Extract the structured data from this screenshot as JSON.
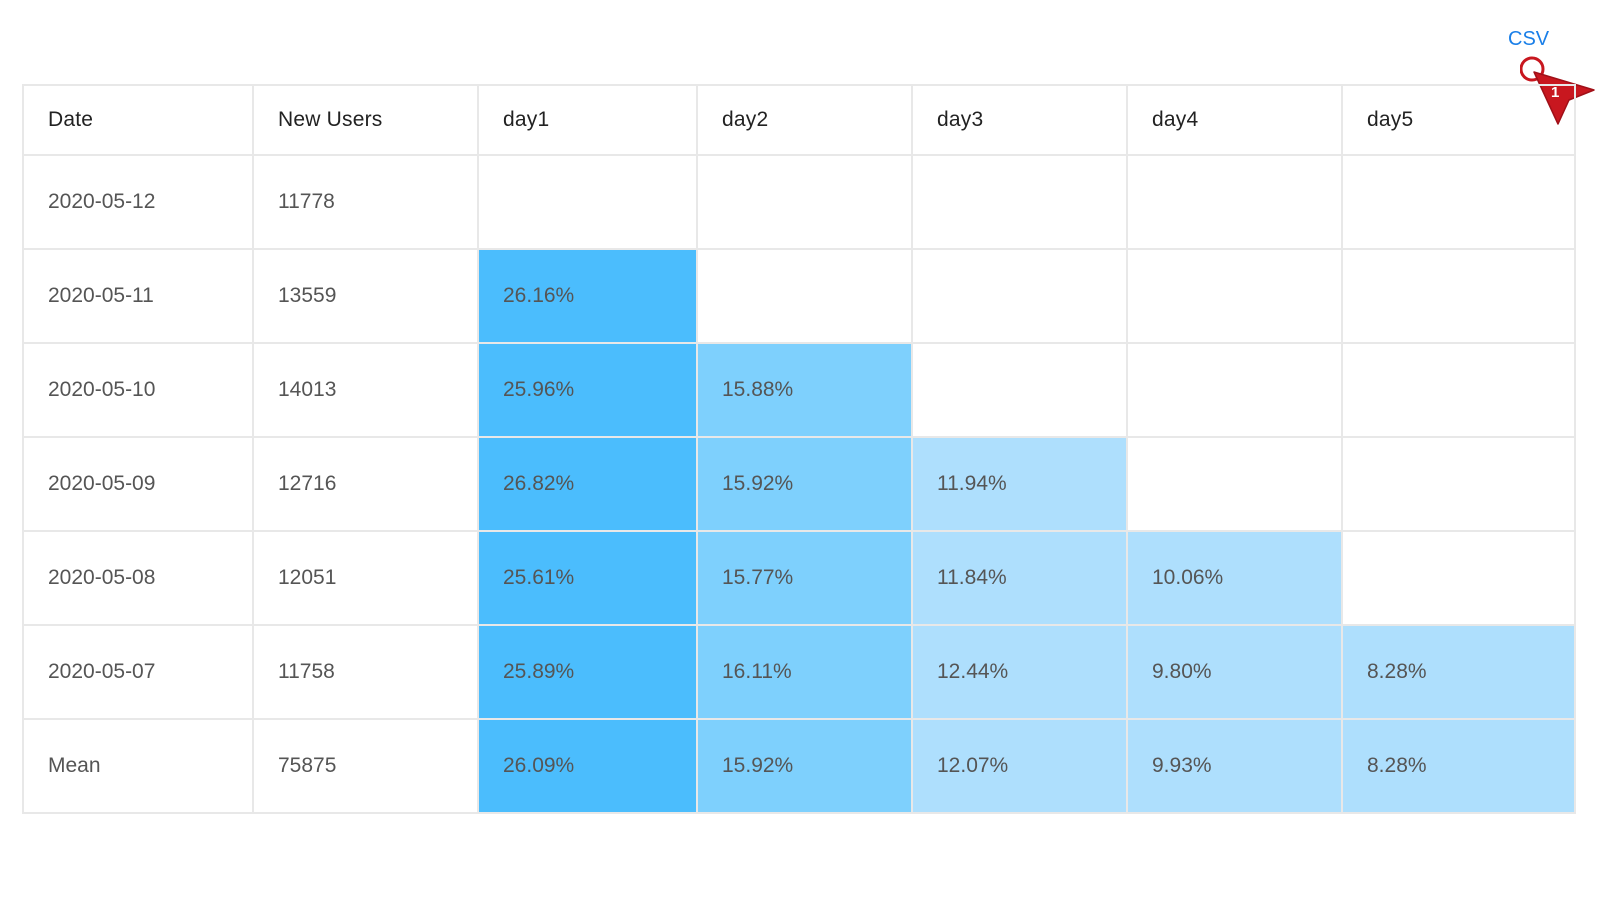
{
  "toolbar": {
    "csv_label": "CSV"
  },
  "table": {
    "headers": [
      "Date",
      "New Users",
      "day1",
      "day2",
      "day3",
      "day4",
      "day5"
    ],
    "rows": [
      {
        "date": "2020-05-12",
        "new_users": "11778",
        "days": [
          "",
          "",
          "",
          "",
          ""
        ]
      },
      {
        "date": "2020-05-11",
        "new_users": "13559",
        "days": [
          "26.16%",
          "",
          "",
          "",
          ""
        ]
      },
      {
        "date": "2020-05-10",
        "new_users": "14013",
        "days": [
          "25.96%",
          "15.88%",
          "",
          "",
          ""
        ]
      },
      {
        "date": "2020-05-09",
        "new_users": "12716",
        "days": [
          "26.82%",
          "15.92%",
          "11.94%",
          "",
          ""
        ]
      },
      {
        "date": "2020-05-08",
        "new_users": "12051",
        "days": [
          "25.61%",
          "15.77%",
          "11.84%",
          "10.06%",
          ""
        ]
      },
      {
        "date": "2020-05-07",
        "new_users": "11758",
        "days": [
          "25.89%",
          "16.11%",
          "12.44%",
          "9.80%",
          "8.28%"
        ]
      },
      {
        "date": "Mean",
        "new_users": "75875",
        "days": [
          "26.09%",
          "15.92%",
          "12.07%",
          "9.93%",
          "8.28%"
        ]
      }
    ]
  },
  "colors": {
    "link": "#1a7fe8",
    "heat_day1": "#4bbdfd",
    "heat_day2": "#7ed0fd",
    "heat_day3_plus": "#aedffd",
    "cursor": "#c8171f"
  },
  "cursor": {
    "badge": "1"
  }
}
